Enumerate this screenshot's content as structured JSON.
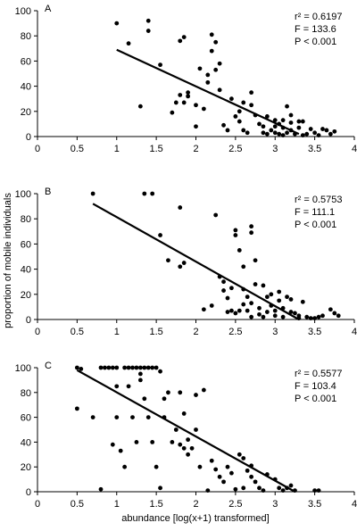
{
  "chart_data": {
    "type": "scatter",
    "xlabel": "abundance [log(x+1) transformed]",
    "ylabel": "proportion of mobile individuals",
    "xlim": [
      0,
      4
    ],
    "ylim": [
      0,
      100
    ],
    "xticks": [
      "0",
      "0.5",
      "1",
      "1.5",
      "2",
      "2.5",
      "3",
      "3.5",
      "4"
    ],
    "yticks": [
      "0",
      "20",
      "40",
      "60",
      "80",
      "100"
    ],
    "panels": [
      {
        "label": "A",
        "stats": {
          "r2": "r² = 0.6197",
          "F": "F = 133.6",
          "P": "P < 0.001"
        },
        "regression": {
          "x": [
            1.0,
            3.3
          ],
          "y": [
            69,
            2
          ]
        },
        "points": [
          [
            1.0,
            90
          ],
          [
            1.15,
            74
          ],
          [
            1.3,
            24
          ],
          [
            1.4,
            92
          ],
          [
            1.4,
            84
          ],
          [
            1.55,
            57
          ],
          [
            1.7,
            19
          ],
          [
            1.75,
            27
          ],
          [
            1.8,
            33
          ],
          [
            1.8,
            76
          ],
          [
            1.85,
            79
          ],
          [
            1.85,
            27
          ],
          [
            1.9,
            35
          ],
          [
            1.9,
            32
          ],
          [
            2.0,
            25
          ],
          [
            2.0,
            8
          ],
          [
            2.05,
            54
          ],
          [
            2.1,
            22
          ],
          [
            2.15,
            43
          ],
          [
            2.15,
            49
          ],
          [
            2.2,
            81
          ],
          [
            2.2,
            68
          ],
          [
            2.25,
            75
          ],
          [
            2.25,
            53
          ],
          [
            2.3,
            58
          ],
          [
            2.3,
            37
          ],
          [
            2.35,
            9
          ],
          [
            2.4,
            5
          ],
          [
            2.45,
            30
          ],
          [
            2.5,
            16
          ],
          [
            2.55,
            20
          ],
          [
            2.55,
            12
          ],
          [
            2.6,
            27
          ],
          [
            2.6,
            5
          ],
          [
            2.65,
            3
          ],
          [
            2.7,
            35
          ],
          [
            2.7,
            25
          ],
          [
            2.75,
            17
          ],
          [
            2.8,
            10
          ],
          [
            2.85,
            8
          ],
          [
            2.85,
            3
          ],
          [
            2.9,
            16
          ],
          [
            2.95,
            5
          ],
          [
            3.0,
            13
          ],
          [
            3.0,
            3
          ],
          [
            3.05,
            10
          ],
          [
            3.05,
            2
          ],
          [
            3.1,
            13
          ],
          [
            3.1,
            7
          ],
          [
            3.15,
            24
          ],
          [
            3.15,
            3
          ],
          [
            3.2,
            17
          ],
          [
            3.2,
            5
          ],
          [
            3.25,
            2
          ],
          [
            3.3,
            12
          ],
          [
            3.3,
            7
          ],
          [
            3.35,
            1
          ],
          [
            3.4,
            2
          ],
          [
            3.45,
            6
          ],
          [
            3.5,
            3
          ],
          [
            3.55,
            1
          ],
          [
            3.6,
            6
          ],
          [
            3.65,
            5
          ],
          [
            3.7,
            2
          ],
          [
            3.75,
            4
          ],
          [
            2.9,
            2
          ],
          [
            3.0,
            8
          ],
          [
            3.1,
            1
          ],
          [
            3.2,
            11
          ],
          [
            3.35,
            12
          ]
        ]
      },
      {
        "label": "B",
        "stats": {
          "r2": "r² = 0.5753",
          "F": "F = 111.1",
          "P": "P < 0.001"
        },
        "regression": {
          "x": [
            0.7,
            3.3
          ],
          "y": [
            92,
            0
          ]
        },
        "points": [
          [
            0.7,
            100
          ],
          [
            1.35,
            100
          ],
          [
            1.45,
            100
          ],
          [
            1.55,
            67
          ],
          [
            1.65,
            47
          ],
          [
            1.8,
            89
          ],
          [
            1.8,
            42
          ],
          [
            1.85,
            45
          ],
          [
            2.1,
            8
          ],
          [
            2.2,
            11
          ],
          [
            2.25,
            83
          ],
          [
            2.3,
            34
          ],
          [
            2.35,
            30
          ],
          [
            2.35,
            23
          ],
          [
            2.4,
            17
          ],
          [
            2.45,
            25
          ],
          [
            2.45,
            7
          ],
          [
            2.5,
            71
          ],
          [
            2.5,
            67
          ],
          [
            2.5,
            5
          ],
          [
            2.55,
            55
          ],
          [
            2.55,
            7
          ],
          [
            2.6,
            42
          ],
          [
            2.6,
            24
          ],
          [
            2.65,
            18
          ],
          [
            2.65,
            7
          ],
          [
            2.7,
            74
          ],
          [
            2.7,
            69
          ],
          [
            2.7,
            13
          ],
          [
            2.7,
            2
          ],
          [
            2.75,
            47
          ],
          [
            2.75,
            28
          ],
          [
            2.8,
            9
          ],
          [
            2.8,
            4
          ],
          [
            2.85,
            27
          ],
          [
            2.85,
            2
          ],
          [
            2.9,
            18
          ],
          [
            2.9,
            6
          ],
          [
            2.95,
            20
          ],
          [
            3.0,
            7
          ],
          [
            3.0,
            3
          ],
          [
            3.05,
            22
          ],
          [
            3.1,
            9
          ],
          [
            3.1,
            2
          ],
          [
            3.15,
            18
          ],
          [
            3.2,
            16
          ],
          [
            3.2,
            6
          ],
          [
            3.25,
            5
          ],
          [
            3.3,
            3
          ],
          [
            3.35,
            14
          ],
          [
            3.4,
            2
          ],
          [
            3.45,
            1
          ],
          [
            3.5,
            1
          ],
          [
            3.55,
            2
          ],
          [
            3.6,
            3
          ],
          [
            3.7,
            8
          ],
          [
            3.75,
            5
          ],
          [
            3.8,
            3
          ],
          [
            3.3,
            1
          ],
          [
            2.4,
            6
          ],
          [
            2.6,
            12
          ],
          [
            2.95,
            11
          ],
          [
            3.05,
            15
          ]
        ]
      },
      {
        "label": "C",
        "stats": {
          "r2": "r² = 0.5577",
          "F": "F = 103.4",
          "P": "P < 0.001"
        },
        "regression": {
          "x": [
            0.5,
            3.25
          ],
          "y": [
            98,
            0
          ]
        },
        "points": [
          [
            0.5,
            100
          ],
          [
            0.5,
            67
          ],
          [
            0.55,
            99
          ],
          [
            0.7,
            60
          ],
          [
            0.8,
            100
          ],
          [
            0.85,
            100
          ],
          [
            0.9,
            100
          ],
          [
            0.95,
            100
          ],
          [
            0.95,
            38
          ],
          [
            1.0,
            100
          ],
          [
            1.0,
            85
          ],
          [
            1.0,
            60
          ],
          [
            1.05,
            33
          ],
          [
            1.1,
            100
          ],
          [
            1.1,
            20
          ],
          [
            1.15,
            100
          ],
          [
            1.15,
            85
          ],
          [
            1.2,
            100
          ],
          [
            1.2,
            60
          ],
          [
            1.25,
            100
          ],
          [
            1.25,
            40
          ],
          [
            1.3,
            100
          ],
          [
            1.3,
            95
          ],
          [
            1.3,
            90
          ],
          [
            1.35,
            100
          ],
          [
            1.35,
            75
          ],
          [
            1.4,
            100
          ],
          [
            1.4,
            60
          ],
          [
            1.45,
            100
          ],
          [
            1.45,
            40
          ],
          [
            1.5,
            100
          ],
          [
            1.5,
            20
          ],
          [
            1.55,
            97
          ],
          [
            1.55,
            3
          ],
          [
            1.6,
            75
          ],
          [
            1.6,
            60
          ],
          [
            1.65,
            80
          ],
          [
            1.7,
            40
          ],
          [
            1.75,
            50
          ],
          [
            1.8,
            80
          ],
          [
            1.8,
            38
          ],
          [
            1.85,
            35
          ],
          [
            1.85,
            63
          ],
          [
            1.9,
            42
          ],
          [
            1.9,
            30
          ],
          [
            1.95,
            35
          ],
          [
            2.0,
            78
          ],
          [
            2.0,
            50
          ],
          [
            2.05,
            20
          ],
          [
            2.1,
            82
          ],
          [
            2.15,
            1
          ],
          [
            2.2,
            25
          ],
          [
            2.25,
            18
          ],
          [
            2.3,
            12
          ],
          [
            2.35,
            8
          ],
          [
            2.4,
            20
          ],
          [
            2.45,
            15
          ],
          [
            2.5,
            2
          ],
          [
            2.55,
            30
          ],
          [
            2.6,
            27
          ],
          [
            2.6,
            3
          ],
          [
            2.65,
            17
          ],
          [
            2.7,
            21
          ],
          [
            2.7,
            12
          ],
          [
            2.75,
            8
          ],
          [
            2.8,
            3
          ],
          [
            2.85,
            1
          ],
          [
            2.9,
            14
          ],
          [
            3.0,
            10
          ],
          [
            3.05,
            3
          ],
          [
            3.1,
            1
          ],
          [
            3.15,
            3
          ],
          [
            3.2,
            5
          ],
          [
            3.25,
            1
          ],
          [
            3.5,
            1
          ],
          [
            3.55,
            1
          ],
          [
            0.8,
            2
          ]
        ]
      }
    ]
  }
}
